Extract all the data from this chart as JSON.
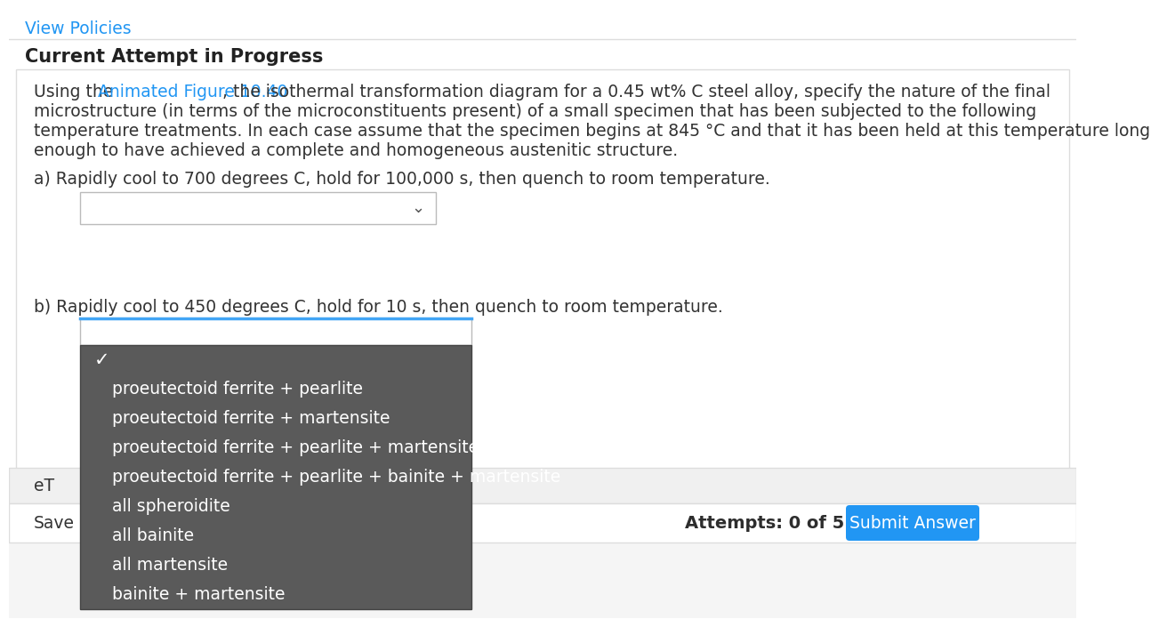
{
  "bg_color": "#ffffff",
  "page_bg": "#f5f5f5",
  "top_link_text": "View Policies",
  "top_link_color": "#2196f3",
  "heading_text": "Current Attempt in Progress",
  "body_text_prefix": "Using the ",
  "body_link_text": "Animated Figure 10.40",
  "body_link_color": "#2196f3",
  "body_text_suffix": ", the isothermal transformation diagram for a 0.45 wt% C steel alloy, specify the nature of the final",
  "body_line2": "microstructure (in terms of the microconstituents present) of a small specimen that has been subjected to the following",
  "body_line3": "temperature treatments. In each case assume that the specimen begins at 845 °C and that it has been held at this temperature long",
  "body_line4": "enough to have achieved a complete and homogeneous austenitic structure.",
  "question_a": "a) Rapidly cool to 700 degrees C, hold for 100,000 s, then quench to room temperature.",
  "question_b": "b) Rapidly cool to 450 degrees C, hold for 10 s, then quench to room temperature.",
  "dropdown_bg": "#ffffff",
  "dropdown_border": "#cccccc",
  "dropdown_open_bg": "#5a5a5a",
  "dropdown_open_border_top": "#42a5f5",
  "dropdown_items": [
    "✓",
    "proeutectoid ferrite + pearlite",
    "proeutectoid ferrite + martensite",
    "proeutectoid ferrite + pearlite + martensite",
    "proeutectoid ferrite + pearlite + bainite + martensite",
    "all spheroidite",
    "all bainite",
    "all martensite",
    "bainite + martensite"
  ],
  "dropdown_text_color": "#ffffff",
  "footer_bg": "#f0f0f0",
  "footer_border": "#dddddd",
  "eT_label": "eT",
  "save_label": "Save",
  "attempts_text": "Attempts: 0 of 5 used",
  "submit_btn_text": "Submit Answer",
  "submit_btn_bg": "#2196f3",
  "submit_btn_text_color": "#ffffff",
  "sep_color": "#dddddd",
  "content_bg": "#ffffff",
  "text_color": "#333333",
  "heading_color": "#222222",
  "font_size_body": 13.5,
  "font_size_heading": 15,
  "font_size_link_top": 13.5
}
